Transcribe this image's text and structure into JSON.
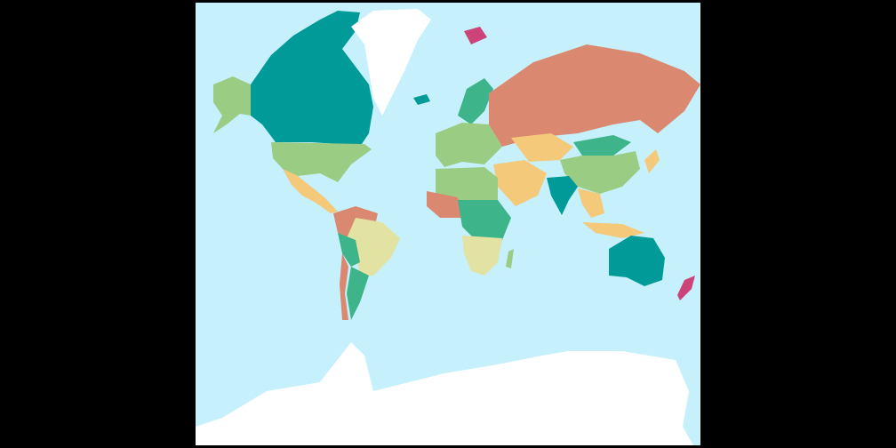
{
  "map": {
    "projection": "mercator",
    "colors": {
      "background": "#000000",
      "ocean": "#c6f0fc",
      "ice": "#ffffff",
      "teal": "#009a98",
      "green": "#9bcc84",
      "salmon": "#da8870",
      "yellow": "#f4c97a",
      "pale_yellow": "#e2e2a2",
      "seagreen": "#3db48a",
      "pink": "#cc4477"
    },
    "regions": [
      {
        "name": "canada",
        "color": "teal"
      },
      {
        "name": "greenland",
        "color": "ice"
      },
      {
        "name": "alaska",
        "color": "green"
      },
      {
        "name": "usa",
        "color": "green"
      },
      {
        "name": "mexico-central-america",
        "color": "yellow"
      },
      {
        "name": "south-america-north",
        "color": "salmon"
      },
      {
        "name": "brazil",
        "color": "pale_yellow"
      },
      {
        "name": "peru-bolivia",
        "color": "seagreen"
      },
      {
        "name": "argentina",
        "color": "seagreen"
      },
      {
        "name": "chile",
        "color": "salmon"
      },
      {
        "name": "iceland",
        "color": "teal"
      },
      {
        "name": "scandinavia",
        "color": "seagreen"
      },
      {
        "name": "europe",
        "color": "green"
      },
      {
        "name": "russia",
        "color": "salmon"
      },
      {
        "name": "kazakhstan",
        "color": "yellow"
      },
      {
        "name": "mongolia",
        "color": "seagreen"
      },
      {
        "name": "china",
        "color": "green"
      },
      {
        "name": "india",
        "color": "teal"
      },
      {
        "name": "middle-east",
        "color": "yellow"
      },
      {
        "name": "north-africa",
        "color": "green"
      },
      {
        "name": "west-africa",
        "color": "salmon"
      },
      {
        "name": "central-africa",
        "color": "seagreen"
      },
      {
        "name": "southern-africa",
        "color": "pale_yellow"
      },
      {
        "name": "madagascar",
        "color": "green"
      },
      {
        "name": "southeast-asia",
        "color": "yellow"
      },
      {
        "name": "indonesia",
        "color": "yellow"
      },
      {
        "name": "japan",
        "color": "yellow"
      },
      {
        "name": "australia",
        "color": "teal"
      },
      {
        "name": "new-zealand",
        "color": "pink"
      },
      {
        "name": "svalbard",
        "color": "pink"
      },
      {
        "name": "antarctica",
        "color": "ice"
      }
    ]
  }
}
